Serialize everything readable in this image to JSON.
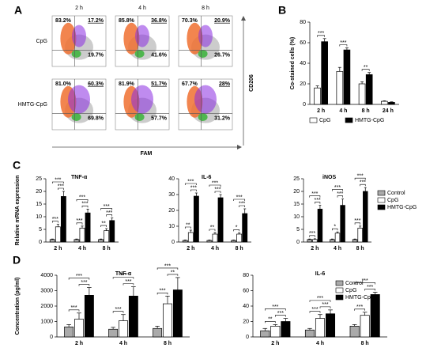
{
  "panel_labels": [
    "A",
    "B",
    "C",
    "D"
  ],
  "flow": {
    "columns": [
      "2 h",
      "4 h",
      "8 h"
    ],
    "x_label": "FAM",
    "y_label": "CD206",
    "rows": [
      {
        "label": "CpG",
        "plots": [
          {
            "orange": "83.2%",
            "purple": "17.2%",
            "green": "19.7%"
          },
          {
            "orange": "85.8%",
            "purple": "36.8%",
            "green": "41.6%"
          },
          {
            "orange": "70.3%",
            "purple": "20.9%",
            "green": "26.7%"
          }
        ]
      },
      {
        "label": "HMTG-CpG",
        "plots": [
          {
            "orange": "81.0%",
            "purple": "60.3%",
            "green": "69.8%"
          },
          {
            "orange": "81.9%",
            "purple": "51.7%",
            "green": "57.7%"
          },
          {
            "orange": "67.7%",
            "purple": "28%",
            "green": "31.2%"
          }
        ]
      }
    ]
  },
  "chart_data": [
    {
      "type": "bar",
      "ylabel": "Co-stained cells (%)",
      "categories": [
        "2 h",
        "4 h",
        "8 h",
        "24 h"
      ],
      "series": [
        {
          "name": "CpG",
          "color": "#ffffff",
          "values": [
            16,
            32,
            20,
            3
          ],
          "errors": [
            2,
            4,
            2,
            0.5
          ]
        },
        {
          "name": "HMTG-CpG",
          "color": "#000000",
          "values": [
            61,
            53,
            29,
            2
          ],
          "errors": [
            3,
            2,
            2,
            0.5
          ]
        }
      ],
      "ylim": [
        0,
        80
      ],
      "yticks": [
        0,
        20,
        40,
        60,
        80
      ],
      "sig": [
        [
          "***"
        ],
        [
          "***"
        ],
        [
          "**"
        ],
        null
      ],
      "legend": true
    },
    {
      "type": "bar",
      "title": "TNF-α",
      "ylabel": "Relative mRNA expression",
      "categories": [
        "2 h",
        "4 h",
        "8 h"
      ],
      "series": [
        {
          "name": "Control",
          "color": "#aaaaaa",
          "values": [
            1,
            1,
            1
          ],
          "errors": [
            0.2,
            0.2,
            0.2
          ]
        },
        {
          "name": "CpG",
          "color": "#ffffff",
          "values": [
            6,
            5.5,
            4.5
          ],
          "errors": [
            1,
            0.8,
            0.8
          ]
        },
        {
          "name": "HMTG-CpG",
          "color": "#000000",
          "values": [
            18,
            11.5,
            8.5
          ],
          "errors": [
            2,
            1.5,
            1
          ]
        }
      ],
      "ylim": [
        0,
        25
      ],
      "yticks": [
        0,
        5,
        10,
        15,
        20,
        25
      ],
      "sig": [
        [
          "***",
          "***",
          "***"
        ],
        [
          "***",
          "***",
          "***"
        ],
        [
          "**",
          "***",
          "***"
        ]
      ],
      "legend": false
    },
    {
      "type": "bar",
      "title": "IL-6",
      "categories": [
        "2 h",
        "4 h",
        "8 h"
      ],
      "series": [
        {
          "name": "Control",
          "color": "#aaaaaa",
          "values": [
            1,
            1,
            1
          ],
          "errors": [
            0.3,
            0.3,
            0.3
          ]
        },
        {
          "name": "CpG",
          "color": "#ffffff",
          "values": [
            6,
            5,
            5
          ],
          "errors": [
            1.5,
            1,
            0.8
          ]
        },
        {
          "name": "HMTG-CpG",
          "color": "#000000",
          "values": [
            29,
            28,
            18
          ],
          "errors": [
            2,
            2,
            3
          ]
        }
      ],
      "ylim": [
        0,
        40
      ],
      "yticks": [
        0,
        10,
        20,
        30,
        40
      ],
      "sig": [
        [
          "**",
          "***",
          "***"
        ],
        [
          "**",
          "***",
          "***"
        ],
        [
          "*",
          "***",
          "***"
        ]
      ],
      "legend": false
    },
    {
      "type": "bar",
      "title": "iNOS",
      "categories": [
        "2 h",
        "4 h",
        "8 h"
      ],
      "series": [
        {
          "name": "Control",
          "color": "#aaaaaa",
          "values": [
            1,
            1,
            1
          ],
          "errors": [
            0.2,
            0.2,
            0.2
          ]
        },
        {
          "name": "CpG",
          "color": "#ffffff",
          "values": [
            1,
            3.5,
            5.5
          ],
          "errors": [
            0.3,
            0.5,
            0.8
          ]
        },
        {
          "name": "HMTG-CpG",
          "color": "#000000",
          "values": [
            13,
            14.5,
            20
          ],
          "errors": [
            1.5,
            2.5,
            1.5
          ]
        }
      ],
      "ylim": [
        0,
        25
      ],
      "yticks": [
        0,
        5,
        10,
        15,
        20,
        25
      ],
      "sig": [
        [
          "***",
          "***",
          "***"
        ],
        [
          "*",
          "***",
          "***"
        ],
        [
          "***",
          "***",
          "***"
        ]
      ],
      "legend": true
    },
    {
      "type": "bar",
      "title": "TNF-α",
      "ylabel": "Concentration (pg/ml)",
      "categories": [
        "2 h",
        "4 h",
        "8 h"
      ],
      "series": [
        {
          "name": "Control",
          "color": "#aaaaaa",
          "values": [
            650,
            500,
            550
          ],
          "errors": [
            150,
            120,
            150
          ]
        },
        {
          "name": "CpG",
          "color": "#ffffff",
          "values": [
            1150,
            1050,
            2150
          ],
          "errors": [
            400,
            400,
            500
          ]
        },
        {
          "name": "HMTG-CpG",
          "color": "#000000",
          "values": [
            2700,
            2650,
            3050
          ],
          "errors": [
            500,
            600,
            800
          ]
        }
      ],
      "ylim": [
        0,
        4000
      ],
      "yticks": [
        0,
        1000,
        2000,
        3000,
        4000
      ],
      "sig": [
        [
          "***",
          "***",
          "***"
        ],
        [
          "***",
          "***",
          "***"
        ],
        [
          "***",
          "**",
          "***"
        ]
      ],
      "legend": false
    },
    {
      "type": "bar",
      "title": "IL-6",
      "categories": [
        "2 h",
        "4 h",
        "8 h"
      ],
      "series": [
        {
          "name": "Control",
          "color": "#aaaaaa",
          "values": [
            8,
            9,
            14
          ],
          "errors": [
            3,
            2,
            2
          ]
        },
        {
          "name": "CpG",
          "color": "#ffffff",
          "values": [
            14,
            24,
            28
          ],
          "errors": [
            2,
            5,
            4
          ]
        },
        {
          "name": "HMTG-CpG",
          "color": "#000000",
          "values": [
            20,
            30,
            55
          ],
          "errors": [
            4,
            5,
            3
          ]
        }
      ],
      "ylim": [
        0,
        80
      ],
      "yticks": [
        0,
        20,
        40,
        60,
        80
      ],
      "sig": [
        [
          "**",
          "***",
          "***"
        ],
        [
          "***",
          "***",
          "***"
        ],
        [
          "***",
          "***",
          "***"
        ]
      ],
      "legend": true
    }
  ]
}
